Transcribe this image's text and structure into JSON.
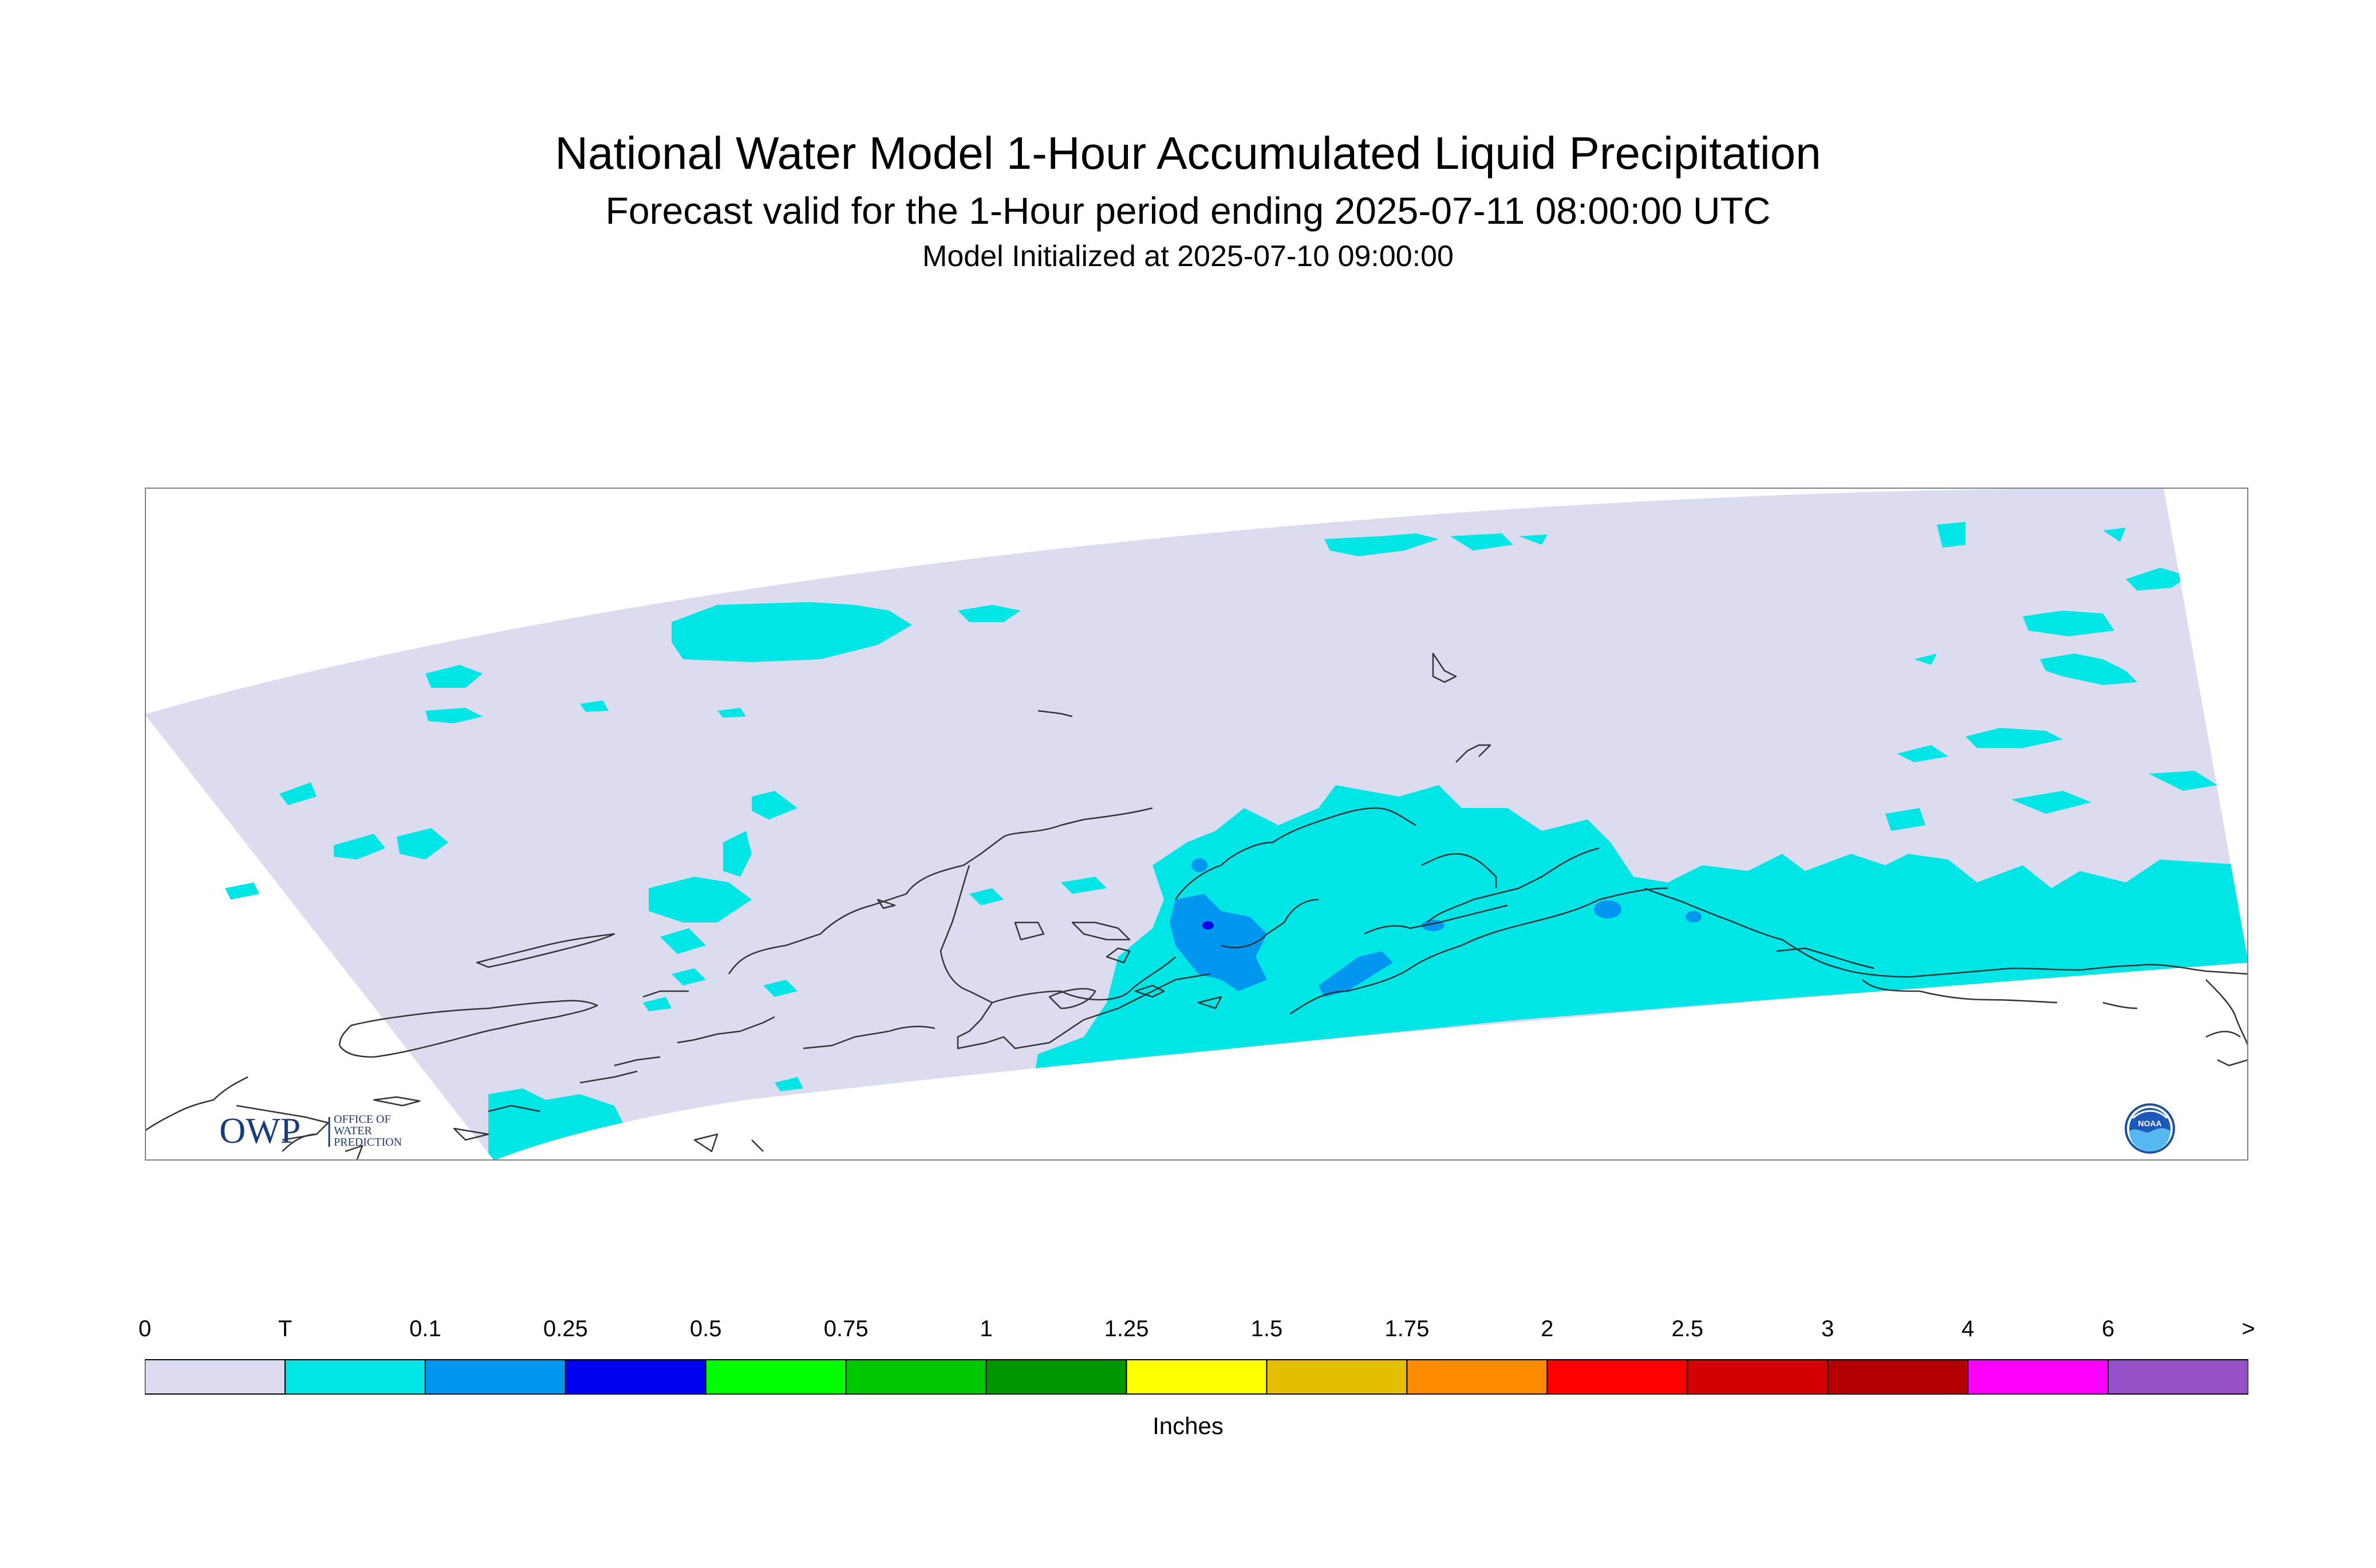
{
  "header": {
    "title": "National Water Model 1-Hour Accumulated Liquid Precipitation",
    "subtitle": "Forecast valid for the 1-Hour period ending 2025-07-11 08:00:00 UTC",
    "init_line": "Model Initialized at 2025-07-10 09:00:00"
  },
  "logos": {
    "owp": {
      "big": "OWP",
      "line1": "OFFICE OF",
      "line2": "WATER",
      "line3": "PREDICTION"
    },
    "noaa": {
      "text": "NOAA"
    }
  },
  "legend": {
    "labels": [
      "0",
      "T",
      "0.1",
      "0.25",
      "0.5",
      "0.75",
      "1",
      "1.25",
      "1.5",
      "1.75",
      "2",
      "2.5",
      "3",
      "4",
      "6",
      ">"
    ],
    "colors": [
      "#dcdcf0",
      "#00e6e6",
      "#0096f0",
      "#0000f0",
      "#00ff00",
      "#00c800",
      "#009600",
      "#ffff00",
      "#e6be00",
      "#ff8c00",
      "#ff0000",
      "#d20000",
      "#b40000",
      "#ff00ff",
      "#9650c8"
    ],
    "units": "Inches"
  },
  "colors": {
    "domain_fill": "#dcdcf0",
    "trace": "#00e6e6",
    "light": "#0096f0",
    "heavy": "#0000f0",
    "coast": "#333333"
  }
}
